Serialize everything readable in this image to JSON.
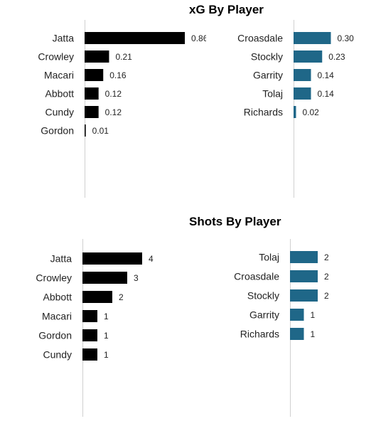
{
  "titles": {
    "xg": "xG By Player",
    "shots": "Shots By Player"
  },
  "colors": {
    "left_bar": "#000000",
    "right_bar": "#1f6788",
    "axis": "#d0d0d0"
  },
  "chart_data": [
    {
      "id": "xg-left",
      "type": "bar",
      "orientation": "horizontal",
      "categories": [
        "Jatta",
        "Crowley",
        "Macari",
        "Abbott",
        "Cundy",
        "Gordon"
      ],
      "values": [
        0.86,
        0.21,
        0.16,
        0.12,
        0.12,
        0.01
      ],
      "value_labels": [
        "0.86",
        "0.21",
        "0.16",
        "0.12",
        "0.12",
        "0.01"
      ],
      "xlim": [
        0,
        1.0
      ],
      "color": "#000000"
    },
    {
      "id": "xg-right",
      "type": "bar",
      "orientation": "horizontal",
      "categories": [
        "Croasdale",
        "Stockly",
        "Garrity",
        "Tolaj",
        "Richards"
      ],
      "values": [
        0.3,
        0.23,
        0.14,
        0.14,
        0.02
      ],
      "value_labels": [
        "0.30",
        "0.23",
        "0.14",
        "0.14",
        "0.02"
      ],
      "xlim": [
        0,
        1.0
      ],
      "color": "#1f6788"
    },
    {
      "id": "shots-left",
      "type": "bar",
      "orientation": "horizontal",
      "categories": [
        "Jatta",
        "Crowley",
        "Abbott",
        "Macari",
        "Gordon",
        "Cundy"
      ],
      "values": [
        4,
        3,
        2,
        1,
        1,
        1
      ],
      "value_labels": [
        "4",
        "3",
        "2",
        "1",
        "1",
        "1"
      ],
      "xlim": [
        0,
        6
      ],
      "color": "#000000"
    },
    {
      "id": "shots-right",
      "type": "bar",
      "orientation": "horizontal",
      "categories": [
        "Tolaj",
        "Croasdale",
        "Stockly",
        "Garrity",
        "Richards"
      ],
      "values": [
        2,
        2,
        2,
        1,
        1
      ],
      "value_labels": [
        "2",
        "2",
        "2",
        "1",
        "1"
      ],
      "xlim": [
        0,
        6
      ],
      "color": "#1f6788"
    }
  ]
}
